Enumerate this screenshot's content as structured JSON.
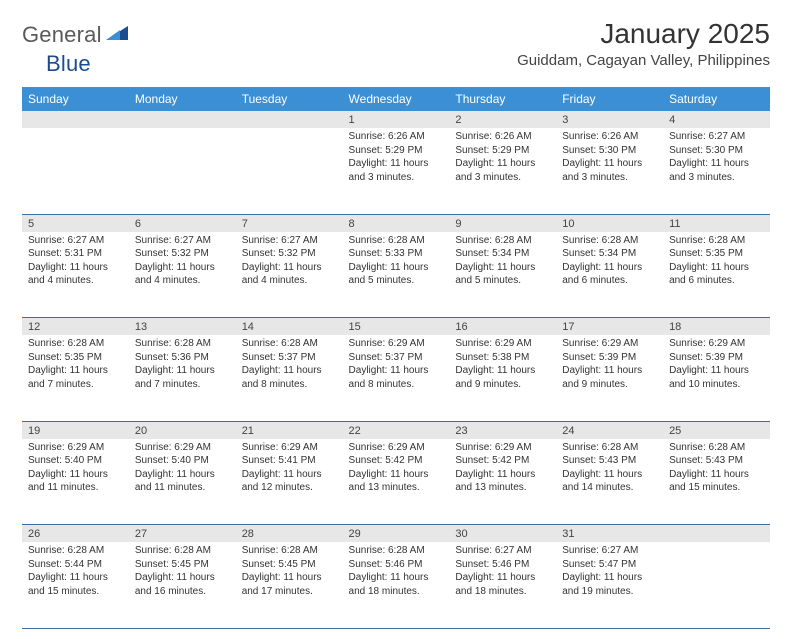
{
  "logo": {
    "part1": "General",
    "part2": "Blue"
  },
  "title": "January 2025",
  "location": "Guiddam, Cagayan Valley, Philippines",
  "colors": {
    "header_bg": "#3b8fd4",
    "header_text": "#ffffff",
    "daynum_bg": "#e7e7e7",
    "rule": "#3b6ea5",
    "logo_gray": "#5a5a5a",
    "logo_blue": "#1a4d8f"
  },
  "day_headers": [
    "Sunday",
    "Monday",
    "Tuesday",
    "Wednesday",
    "Thursday",
    "Friday",
    "Saturday"
  ],
  "weeks": [
    [
      {
        "n": "",
        "lines": []
      },
      {
        "n": "",
        "lines": []
      },
      {
        "n": "",
        "lines": []
      },
      {
        "n": "1",
        "lines": [
          "Sunrise: 6:26 AM",
          "Sunset: 5:29 PM",
          "Daylight: 11 hours",
          "and 3 minutes."
        ]
      },
      {
        "n": "2",
        "lines": [
          "Sunrise: 6:26 AM",
          "Sunset: 5:29 PM",
          "Daylight: 11 hours",
          "and 3 minutes."
        ]
      },
      {
        "n": "3",
        "lines": [
          "Sunrise: 6:26 AM",
          "Sunset: 5:30 PM",
          "Daylight: 11 hours",
          "and 3 minutes."
        ]
      },
      {
        "n": "4",
        "lines": [
          "Sunrise: 6:27 AM",
          "Sunset: 5:30 PM",
          "Daylight: 11 hours",
          "and 3 minutes."
        ]
      }
    ],
    [
      {
        "n": "5",
        "lines": [
          "Sunrise: 6:27 AM",
          "Sunset: 5:31 PM",
          "Daylight: 11 hours",
          "and 4 minutes."
        ]
      },
      {
        "n": "6",
        "lines": [
          "Sunrise: 6:27 AM",
          "Sunset: 5:32 PM",
          "Daylight: 11 hours",
          "and 4 minutes."
        ]
      },
      {
        "n": "7",
        "lines": [
          "Sunrise: 6:27 AM",
          "Sunset: 5:32 PM",
          "Daylight: 11 hours",
          "and 4 minutes."
        ]
      },
      {
        "n": "8",
        "lines": [
          "Sunrise: 6:28 AM",
          "Sunset: 5:33 PM",
          "Daylight: 11 hours",
          "and 5 minutes."
        ]
      },
      {
        "n": "9",
        "lines": [
          "Sunrise: 6:28 AM",
          "Sunset: 5:34 PM",
          "Daylight: 11 hours",
          "and 5 minutes."
        ]
      },
      {
        "n": "10",
        "lines": [
          "Sunrise: 6:28 AM",
          "Sunset: 5:34 PM",
          "Daylight: 11 hours",
          "and 6 minutes."
        ]
      },
      {
        "n": "11",
        "lines": [
          "Sunrise: 6:28 AM",
          "Sunset: 5:35 PM",
          "Daylight: 11 hours",
          "and 6 minutes."
        ]
      }
    ],
    [
      {
        "n": "12",
        "lines": [
          "Sunrise: 6:28 AM",
          "Sunset: 5:35 PM",
          "Daylight: 11 hours",
          "and 7 minutes."
        ]
      },
      {
        "n": "13",
        "lines": [
          "Sunrise: 6:28 AM",
          "Sunset: 5:36 PM",
          "Daylight: 11 hours",
          "and 7 minutes."
        ]
      },
      {
        "n": "14",
        "lines": [
          "Sunrise: 6:28 AM",
          "Sunset: 5:37 PM",
          "Daylight: 11 hours",
          "and 8 minutes."
        ]
      },
      {
        "n": "15",
        "lines": [
          "Sunrise: 6:29 AM",
          "Sunset: 5:37 PM",
          "Daylight: 11 hours",
          "and 8 minutes."
        ]
      },
      {
        "n": "16",
        "lines": [
          "Sunrise: 6:29 AM",
          "Sunset: 5:38 PM",
          "Daylight: 11 hours",
          "and 9 minutes."
        ]
      },
      {
        "n": "17",
        "lines": [
          "Sunrise: 6:29 AM",
          "Sunset: 5:39 PM",
          "Daylight: 11 hours",
          "and 9 minutes."
        ]
      },
      {
        "n": "18",
        "lines": [
          "Sunrise: 6:29 AM",
          "Sunset: 5:39 PM",
          "Daylight: 11 hours",
          "and 10 minutes."
        ]
      }
    ],
    [
      {
        "n": "19",
        "lines": [
          "Sunrise: 6:29 AM",
          "Sunset: 5:40 PM",
          "Daylight: 11 hours",
          "and 11 minutes."
        ]
      },
      {
        "n": "20",
        "lines": [
          "Sunrise: 6:29 AM",
          "Sunset: 5:40 PM",
          "Daylight: 11 hours",
          "and 11 minutes."
        ]
      },
      {
        "n": "21",
        "lines": [
          "Sunrise: 6:29 AM",
          "Sunset: 5:41 PM",
          "Daylight: 11 hours",
          "and 12 minutes."
        ]
      },
      {
        "n": "22",
        "lines": [
          "Sunrise: 6:29 AM",
          "Sunset: 5:42 PM",
          "Daylight: 11 hours",
          "and 13 minutes."
        ]
      },
      {
        "n": "23",
        "lines": [
          "Sunrise: 6:29 AM",
          "Sunset: 5:42 PM",
          "Daylight: 11 hours",
          "and 13 minutes."
        ]
      },
      {
        "n": "24",
        "lines": [
          "Sunrise: 6:28 AM",
          "Sunset: 5:43 PM",
          "Daylight: 11 hours",
          "and 14 minutes."
        ]
      },
      {
        "n": "25",
        "lines": [
          "Sunrise: 6:28 AM",
          "Sunset: 5:43 PM",
          "Daylight: 11 hours",
          "and 15 minutes."
        ]
      }
    ],
    [
      {
        "n": "26",
        "lines": [
          "Sunrise: 6:28 AM",
          "Sunset: 5:44 PM",
          "Daylight: 11 hours",
          "and 15 minutes."
        ]
      },
      {
        "n": "27",
        "lines": [
          "Sunrise: 6:28 AM",
          "Sunset: 5:45 PM",
          "Daylight: 11 hours",
          "and 16 minutes."
        ]
      },
      {
        "n": "28",
        "lines": [
          "Sunrise: 6:28 AM",
          "Sunset: 5:45 PM",
          "Daylight: 11 hours",
          "and 17 minutes."
        ]
      },
      {
        "n": "29",
        "lines": [
          "Sunrise: 6:28 AM",
          "Sunset: 5:46 PM",
          "Daylight: 11 hours",
          "and 18 minutes."
        ]
      },
      {
        "n": "30",
        "lines": [
          "Sunrise: 6:27 AM",
          "Sunset: 5:46 PM",
          "Daylight: 11 hours",
          "and 18 minutes."
        ]
      },
      {
        "n": "31",
        "lines": [
          "Sunrise: 6:27 AM",
          "Sunset: 5:47 PM",
          "Daylight: 11 hours",
          "and 19 minutes."
        ]
      },
      {
        "n": "",
        "lines": []
      }
    ]
  ]
}
